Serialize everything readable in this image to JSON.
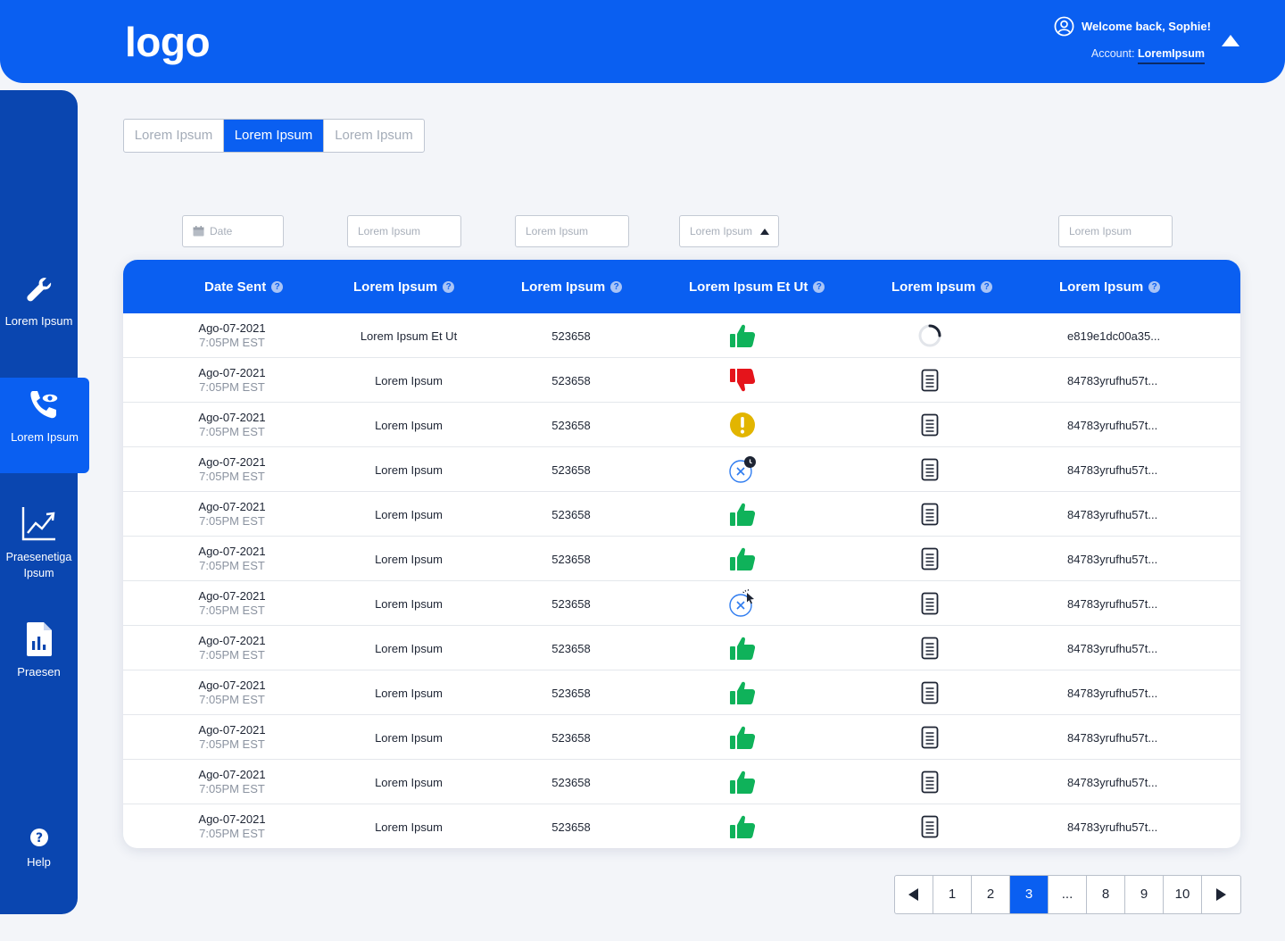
{
  "header": {
    "logo": "logo",
    "welcome": "Welcome back, Sophie!",
    "account_label": "Account:",
    "account_name": "LoremIpsum"
  },
  "sidebar": {
    "items": [
      {
        "label": "Lorem Ipsum",
        "icon": "wrench-icon"
      },
      {
        "label": "Lorem Ipsum",
        "icon": "phone-eye-icon",
        "active": true
      },
      {
        "label": "Praesenetiga Ipsum",
        "icon": "chart-line-icon"
      },
      {
        "label": "Praesen",
        "icon": "report-icon"
      },
      {
        "label": "Help",
        "icon": "help-icon"
      }
    ]
  },
  "tabs": [
    {
      "label": "Lorem Ipsum"
    },
    {
      "label": "Lorem Ipsum",
      "active": true
    },
    {
      "label": "Lorem Ipsum"
    }
  ],
  "filters": {
    "date": "Date",
    "f2": "Lorem Ipsum",
    "f3": "Lorem Ipsum",
    "f4": "Lorem Ipsum",
    "f5": "Lorem Ipsum"
  },
  "table": {
    "columns": [
      "Date Sent",
      "Lorem Ipsum",
      "Lorem Ipsum",
      "Lorem Ipsum Et Ut",
      "Lorem Ipsum",
      "Lorem Ipsum"
    ],
    "rows": [
      {
        "date": "Ago-07-2021",
        "time": "7:05PM EST",
        "name": "Lorem Ipsum Et Ut",
        "id": "523658",
        "status": "thumbs-up",
        "doc": "spinner",
        "hash": "e819e1dc00a35..."
      },
      {
        "date": "Ago-07-2021",
        "time": "7:05PM EST",
        "name": "Lorem Ipsum",
        "id": "523658",
        "status": "thumbs-down",
        "doc": "document",
        "hash": "84783yrufhu57t..."
      },
      {
        "date": "Ago-07-2021",
        "time": "7:05PM EST",
        "name": "Lorem Ipsum",
        "id": "523658",
        "status": "warning",
        "doc": "document",
        "hash": "84783yrufhu57t..."
      },
      {
        "date": "Ago-07-2021",
        "time": "7:05PM EST",
        "name": "Lorem Ipsum",
        "id": "523658",
        "status": "cancel-clock",
        "doc": "document",
        "hash": "84783yrufhu57t..."
      },
      {
        "date": "Ago-07-2021",
        "time": "7:05PM EST",
        "name": "Lorem Ipsum",
        "id": "523658",
        "status": "thumbs-up",
        "doc": "document",
        "hash": "84783yrufhu57t..."
      },
      {
        "date": "Ago-07-2021",
        "time": "7:05PM EST",
        "name": "Lorem Ipsum",
        "id": "523658",
        "status": "thumbs-up",
        "doc": "document",
        "hash": "84783yrufhu57t..."
      },
      {
        "date": "Ago-07-2021",
        "time": "7:05PM EST",
        "name": "Lorem Ipsum",
        "id": "523658",
        "status": "cancel-cursor",
        "doc": "document",
        "hash": "84783yrufhu57t..."
      },
      {
        "date": "Ago-07-2021",
        "time": "7:05PM EST",
        "name": "Lorem Ipsum",
        "id": "523658",
        "status": "thumbs-up",
        "doc": "document",
        "hash": "84783yrufhu57t..."
      },
      {
        "date": "Ago-07-2021",
        "time": "7:05PM EST",
        "name": "Lorem Ipsum",
        "id": "523658",
        "status": "thumbs-up",
        "doc": "document",
        "hash": "84783yrufhu57t..."
      },
      {
        "date": "Ago-07-2021",
        "time": "7:05PM EST",
        "name": "Lorem Ipsum",
        "id": "523658",
        "status": "thumbs-up",
        "doc": "document",
        "hash": "84783yrufhu57t..."
      },
      {
        "date": "Ago-07-2021",
        "time": "7:05PM EST",
        "name": "Lorem Ipsum",
        "id": "523658",
        "status": "thumbs-up",
        "doc": "document",
        "hash": "84783yrufhu57t..."
      },
      {
        "date": "Ago-07-2021",
        "time": "7:05PM EST",
        "name": "Lorem Ipsum",
        "id": "523658",
        "status": "thumbs-up",
        "doc": "document",
        "hash": "84783yrufhu57t..."
      }
    ]
  },
  "pagination": {
    "pages": [
      "1",
      "2",
      "3",
      "...",
      "8",
      "9",
      "10"
    ],
    "current": "3"
  },
  "colors": {
    "primary": "#0a5ff1",
    "sidebar": "#0a46b0",
    "success": "#0fb25a",
    "danger": "#e5141b",
    "warning": "#e2b500"
  }
}
